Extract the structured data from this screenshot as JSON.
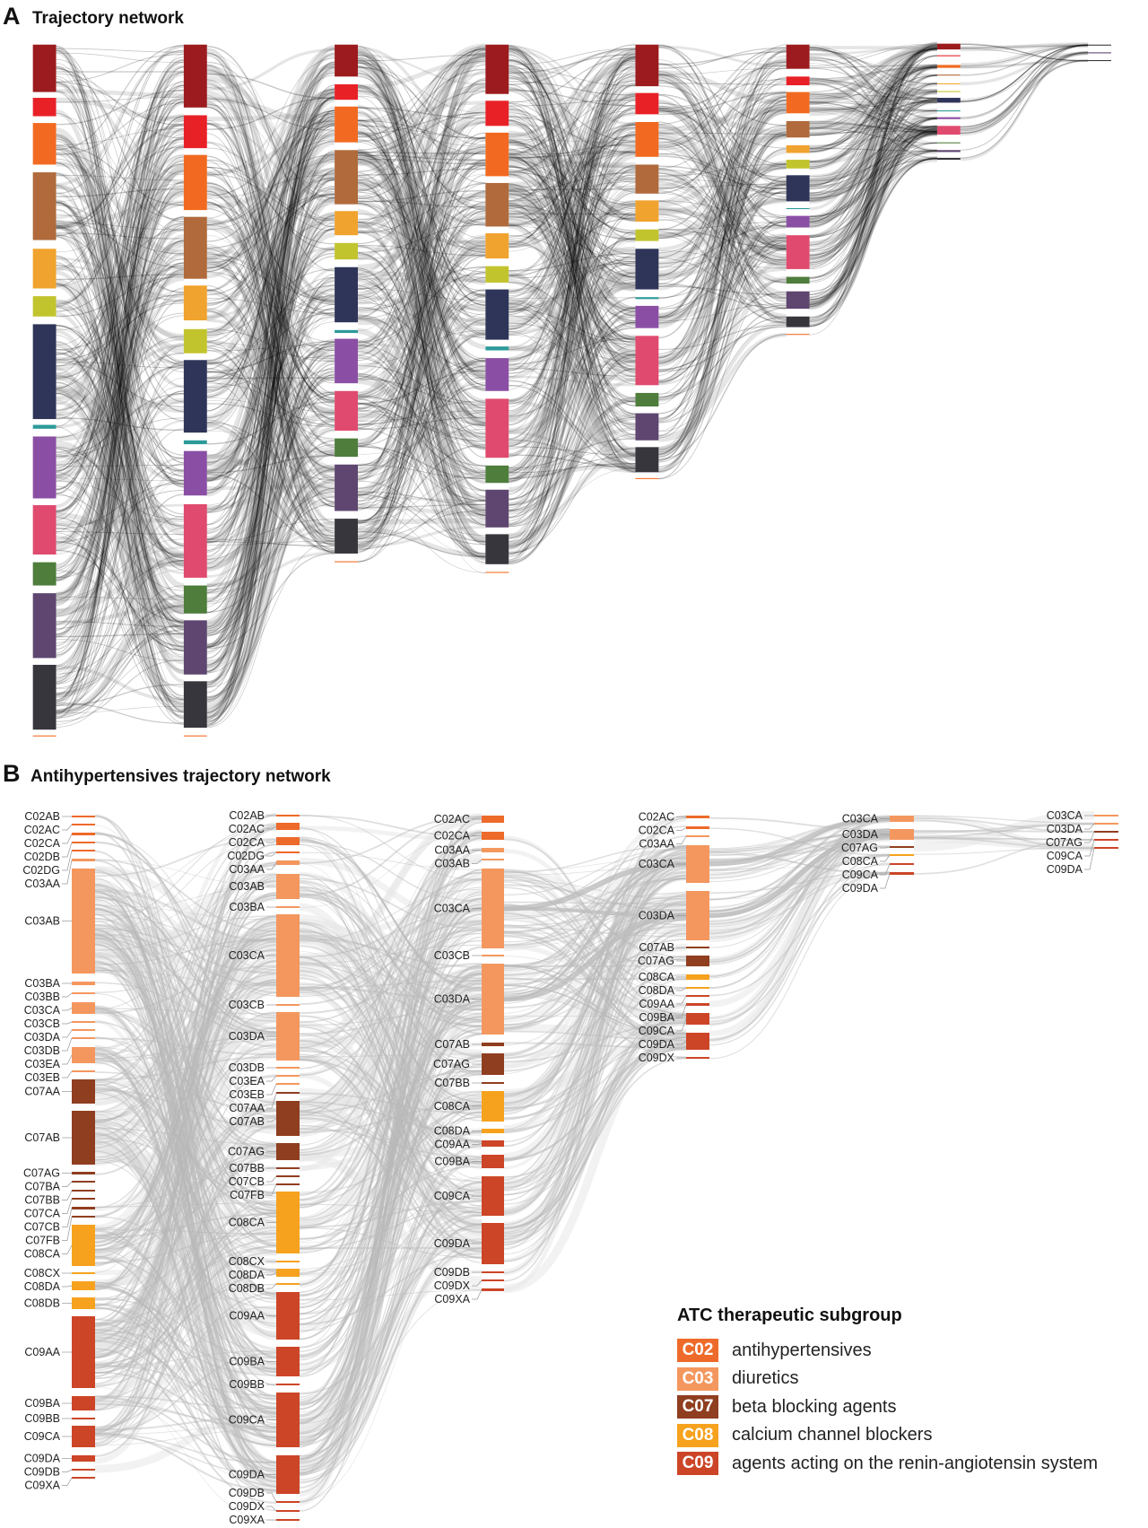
{
  "panel_a": {
    "letter": "A",
    "title": "Trajectory network",
    "node_colors": [
      "#9b1b1e",
      "#e82127",
      "#f26a21",
      "#b06a3b",
      "#f0a32e",
      "#c2c42e",
      "#2e3558",
      "#2c9a9a",
      "#8a4fa5",
      "#e04a6e",
      "#4e7d3c",
      "#5e4670",
      "#38363d"
    ]
  },
  "panel_b": {
    "letter": "B",
    "title": "Antihypertensives trajectory network",
    "columns": [
      [
        "C02AB",
        "C02AC",
        "C02CA",
        "C02DB",
        "C02DG",
        "C03AA",
        "C03AB",
        "C03BA",
        "C03BB",
        "C03CA",
        "C03CB",
        "C03DA",
        "C03DB",
        "C03EA",
        "C03EB",
        "C07AA",
        "C07AB",
        "C07AG",
        "C07BA",
        "C07BB",
        "C07CA",
        "C07CB",
        "C07FB",
        "C08CA",
        "C08CX",
        "C08DA",
        "C08DB",
        "C09AA",
        "C09BA",
        "C09BB",
        "C09CA",
        "C09DA",
        "C09DB",
        "C09XA"
      ],
      [
        "C02AB",
        "C02AC",
        "C02CA",
        "C02DG",
        "C03AA",
        "C03AB",
        "C03BA",
        "C03CA",
        "C03CB",
        "C03DA",
        "C03DB",
        "C03EA",
        "C03EB",
        "C07AA",
        "C07AB",
        "C07AG",
        "C07BB",
        "C07CB",
        "C07FB",
        "C08CA",
        "C08CX",
        "C08DA",
        "C08DB",
        "C09AA",
        "C09BA",
        "C09BB",
        "C09CA",
        "C09DA",
        "C09DB",
        "C09DX",
        "C09XA"
      ],
      [
        "C02AC",
        "C02CA",
        "C03AA",
        "C03AB",
        "C03CA",
        "C03CB",
        "C03DA",
        "C07AB",
        "C07AG",
        "C07BB",
        "C08CA",
        "C08DA",
        "C09AA",
        "C09BA",
        "C09CA",
        "C09DA",
        "C09DB",
        "C09DX",
        "C09XA"
      ],
      [
        "C02AC",
        "C02CA",
        "C03AA",
        "C03CA",
        "C03DA",
        "C07AB",
        "C07AG",
        "C08CA",
        "C08DA",
        "C09AA",
        "C09BA",
        "C09CA",
        "C09DA",
        "C09DX"
      ],
      [
        "C03CA",
        "C03DA",
        "C07AG",
        "C08CA",
        "C09CA",
        "C09DA"
      ],
      [
        "C03CA",
        "C03DA",
        "C07AG",
        "C09CA",
        "C09DA"
      ]
    ]
  },
  "legend": {
    "title": "ATC therapeutic subgroup",
    "items": [
      {
        "code": "C02",
        "label": "antihypertensives",
        "color": "#ee6a2a"
      },
      {
        "code": "C03",
        "label": "diuretics",
        "color": "#f4975e"
      },
      {
        "code": "C07",
        "label": "beta blocking agents",
        "color": "#8f3e1f"
      },
      {
        "code": "C08",
        "label": "calcium channel blockers",
        "color": "#f6a21e"
      },
      {
        "code": "C09",
        "label": "agents acting on the renin-angiotensin system",
        "color": "#cc4527"
      }
    ]
  }
}
